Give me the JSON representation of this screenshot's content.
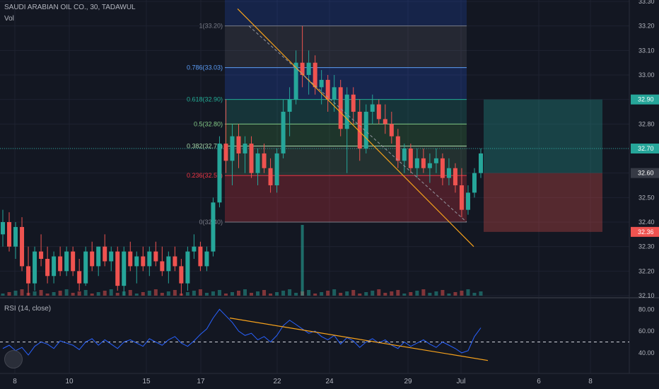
{
  "header": {
    "symbol": "SAUDI ARABIAN OIL CO., 30, TADAWUL",
    "volume_label": "Vol",
    "rsi_label": "RSI (14, close)"
  },
  "colors": {
    "background": "#131722",
    "grid": "#1e2230",
    "up": "#26a69a",
    "down": "#ef5350",
    "trendline": "#f7a21b",
    "rsi_line": "#2962ff",
    "axis_text": "#b2b5be"
  },
  "icons": {
    "logo": "tradingview-logo-icon"
  },
  "chart_data": {
    "type": "candlestick",
    "title": "SAUDI ARABIAN OIL CO., 30, TADAWUL",
    "price_axis": {
      "min": 32.1,
      "max": 33.3,
      "ticks": [
        "32.10",
        "32.20",
        "32.30",
        "32.40",
        "32.50",
        "32.60",
        "32.70",
        "32.80",
        "32.90",
        "33.00",
        "33.10",
        "33.20",
        "33.30"
      ]
    },
    "x_axis": {
      "ticks": [
        {
          "label": "8",
          "x": 21
        },
        {
          "label": "10",
          "x": 98
        },
        {
          "label": "15",
          "x": 207
        },
        {
          "label": "17",
          "x": 284
        },
        {
          "label": "22",
          "x": 392
        },
        {
          "label": "24",
          "x": 466
        },
        {
          "label": "29",
          "x": 577
        },
        {
          "label": "Jul",
          "x": 652
        },
        {
          "label": "6",
          "x": 762
        },
        {
          "label": "8",
          "x": 835
        }
      ]
    },
    "price_badges": [
      {
        "value": "32.90",
        "color": "#26a69a"
      },
      {
        "value": "32.70",
        "color": "#26a69a"
      },
      {
        "value": "32.60",
        "color": "#363a45"
      },
      {
        "value": "32.36",
        "color": "#ef5350"
      }
    ],
    "fibonacci": {
      "levels": [
        {
          "label": "1(33.20)",
          "price": 33.2,
          "color": "#787b86"
        },
        {
          "label": "0.786(33.03)",
          "price": 33.03,
          "color": "#5b9cf6"
        },
        {
          "label": "0.618(32.90)",
          "price": 32.9,
          "color": "#22ab94"
        },
        {
          "label": "0.5(32.80)",
          "price": 32.8,
          "color": "#81c784"
        },
        {
          "label": "0.382(32.71)",
          "price": 32.71,
          "color": "#a5d6a7"
        },
        {
          "label": "0.236(32.59)",
          "price": 32.59,
          "color": "#f23645"
        },
        {
          "label": "0(32.40)",
          "price": 32.4,
          "color": "#787b86"
        }
      ]
    },
    "position": {
      "entry": 32.6,
      "target": 32.9,
      "stop": 32.36
    },
    "candles": [
      [
        0,
        32.35,
        32.45,
        32.3,
        32.4
      ],
      [
        1,
        32.4,
        32.44,
        32.28,
        32.3
      ],
      [
        2,
        32.3,
        32.4,
        32.25,
        32.38
      ],
      [
        3,
        32.38,
        32.42,
        32.2,
        32.22
      ],
      [
        4,
        32.22,
        32.3,
        32.1,
        32.15
      ],
      [
        5,
        32.15,
        32.3,
        32.12,
        32.28
      ],
      [
        6,
        32.28,
        32.35,
        32.22,
        32.25
      ],
      [
        7,
        32.25,
        32.3,
        32.15,
        32.18
      ],
      [
        8,
        32.18,
        32.28,
        32.15,
        32.26
      ],
      [
        9,
        32.26,
        32.3,
        32.18,
        32.2
      ],
      [
        10,
        32.2,
        32.3,
        32.18,
        32.28
      ],
      [
        11,
        32.28,
        32.3,
        32.18,
        32.2
      ],
      [
        12,
        32.2,
        32.25,
        32.12,
        32.15
      ],
      [
        13,
        32.15,
        32.3,
        32.14,
        32.28
      ],
      [
        14,
        32.28,
        32.32,
        32.2,
        32.22
      ],
      [
        15,
        32.22,
        32.3,
        32.18,
        32.3
      ],
      [
        16,
        32.3,
        32.35,
        32.22,
        32.24
      ],
      [
        17,
        32.24,
        32.3,
        32.2,
        32.28
      ],
      [
        18,
        32.28,
        32.3,
        32.12,
        32.14
      ],
      [
        19,
        32.14,
        32.3,
        32.1,
        32.28
      ],
      [
        20,
        32.28,
        32.32,
        32.2,
        32.22
      ],
      [
        21,
        32.22,
        32.28,
        32.15,
        32.26
      ],
      [
        22,
        32.26,
        32.3,
        32.2,
        32.22
      ],
      [
        23,
        32.22,
        32.3,
        32.18,
        32.28
      ],
      [
        24,
        32.28,
        32.32,
        32.22,
        32.24
      ],
      [
        25,
        32.24,
        32.3,
        32.18,
        32.2
      ],
      [
        26,
        32.2,
        32.28,
        32.15,
        32.26
      ],
      [
        27,
        32.26,
        32.3,
        32.2,
        32.22
      ],
      [
        28,
        32.22,
        32.25,
        32.1,
        32.15
      ],
      [
        29,
        32.15,
        32.3,
        32.12,
        32.28
      ],
      [
        30,
        32.28,
        32.35,
        32.25,
        32.3
      ],
      [
        31,
        32.3,
        32.32,
        32.2,
        32.22
      ],
      [
        32,
        32.22,
        32.3,
        32.2,
        32.28
      ],
      [
        33,
        32.28,
        32.5,
        32.26,
        32.48
      ],
      [
        34,
        32.48,
        32.75,
        32.46,
        32.72
      ],
      [
        35,
        32.72,
        32.9,
        32.6,
        32.65
      ],
      [
        36,
        32.65,
        32.8,
        32.55,
        32.75
      ],
      [
        37,
        32.75,
        32.8,
        32.62,
        32.68
      ],
      [
        38,
        32.68,
        32.75,
        32.6,
        32.72
      ],
      [
        39,
        32.72,
        32.75,
        32.58,
        32.6
      ],
      [
        40,
        32.6,
        32.7,
        32.55,
        32.68
      ],
      [
        41,
        32.68,
        32.72,
        32.6,
        32.62
      ],
      [
        42,
        32.62,
        32.66,
        32.52,
        32.55
      ],
      [
        43,
        32.55,
        32.7,
        32.52,
        32.68
      ],
      [
        44,
        32.68,
        32.9,
        32.66,
        32.85
      ],
      [
        45,
        32.85,
        32.95,
        32.75,
        32.9
      ],
      [
        46,
        32.9,
        33.1,
        32.88,
        33.05
      ],
      [
        47,
        33.05,
        33.2,
        32.95,
        33.0
      ],
      [
        48,
        33.0,
        33.1,
        32.92,
        33.05
      ],
      [
        49,
        33.05,
        33.08,
        32.92,
        32.95
      ],
      [
        50,
        32.95,
        33.02,
        32.88,
        32.98
      ],
      [
        51,
        32.98,
        33.0,
        32.85,
        32.9
      ],
      [
        52,
        32.9,
        33.0,
        32.85,
        32.95
      ],
      [
        53,
        32.95,
        32.98,
        32.75,
        32.78
      ],
      [
        54,
        32.78,
        32.95,
        32.6,
        32.92
      ],
      [
        55,
        32.92,
        32.95,
        32.8,
        32.85
      ],
      [
        56,
        32.85,
        32.9,
        32.65,
        32.7
      ],
      [
        57,
        32.7,
        32.88,
        32.68,
        32.85
      ],
      [
        58,
        32.85,
        32.92,
        32.8,
        32.88
      ],
      [
        59,
        32.88,
        32.9,
        32.8,
        32.82
      ],
      [
        60,
        32.82,
        32.88,
        32.76,
        32.8
      ],
      [
        61,
        32.8,
        32.85,
        32.72,
        32.75
      ],
      [
        62,
        32.75,
        32.78,
        32.62,
        32.65
      ],
      [
        63,
        32.65,
        32.72,
        32.6,
        32.7
      ],
      [
        64,
        32.7,
        32.72,
        32.6,
        32.62
      ],
      [
        65,
        32.62,
        32.7,
        32.58,
        32.66
      ],
      [
        66,
        32.66,
        32.7,
        32.6,
        32.62
      ],
      [
        67,
        32.62,
        32.68,
        32.56,
        32.64
      ],
      [
        68,
        32.64,
        32.7,
        32.6,
        32.66
      ],
      [
        69,
        32.66,
        32.68,
        32.55,
        32.58
      ],
      [
        70,
        32.58,
        32.66,
        32.55,
        32.62
      ],
      [
        71,
        32.62,
        32.64,
        32.52,
        32.55
      ],
      [
        72,
        32.55,
        32.62,
        32.42,
        32.45
      ],
      [
        73,
        32.45,
        32.55,
        32.43,
        32.52
      ],
      [
        74,
        32.52,
        32.62,
        32.5,
        32.6
      ],
      [
        75,
        32.6,
        32.7,
        32.58,
        32.68
      ]
    ],
    "rsi": {
      "label": "RSI (14, close)",
      "ticks": [
        "40.00",
        "60.00",
        "80.00"
      ],
      "range": [
        25,
        88
      ],
      "values": [
        44,
        47,
        42,
        45,
        38,
        46,
        50,
        48,
        44,
        51,
        49,
        47,
        43,
        50,
        53,
        47,
        52,
        48,
        44,
        50,
        52,
        49,
        46,
        53,
        50,
        47,
        52,
        55,
        49,
        46,
        51,
        57,
        62,
        72,
        80,
        74,
        68,
        60,
        56,
        58,
        52,
        55,
        50,
        56,
        65,
        70,
        66,
        62,
        58,
        60,
        55,
        52,
        56,
        48,
        54,
        51,
        45,
        50,
        53,
        49,
        52,
        47,
        44,
        50,
        46,
        49,
        52,
        48,
        45,
        50,
        47,
        44,
        40,
        42,
        55,
        63
      ],
      "midline": 50
    }
  }
}
